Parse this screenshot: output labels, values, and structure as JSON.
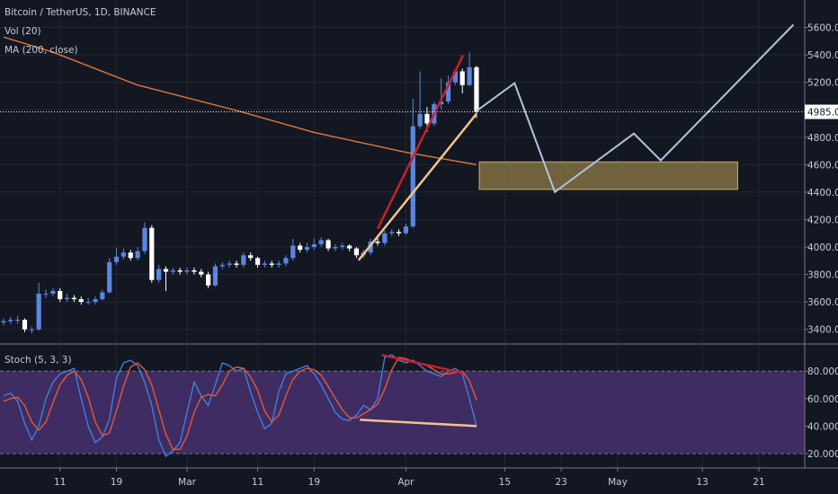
{
  "chart_data": [
    {
      "type": "candlestick",
      "title": "Bitcoin / TetherUS, 1D, BINANCE",
      "volume_label": "Vol (20)",
      "up_color": "#5a86e0",
      "down_color": "#ffffff",
      "grid": true,
      "x": [
        2,
        3,
        4,
        5,
        6,
        7,
        8,
        9,
        10,
        11,
        12,
        13,
        14,
        15,
        16,
        17,
        18,
        19,
        20,
        21,
        22,
        23,
        24,
        25,
        26,
        27,
        28,
        29,
        30,
        31,
        32,
        33,
        34,
        35,
        36,
        37,
        38,
        39,
        40,
        41,
        42,
        43,
        44,
        45,
        46,
        47,
        48,
        49,
        50,
        51,
        52,
        53,
        54,
        55,
        56,
        57,
        58,
        59,
        60,
        61,
        62,
        63,
        64,
        65,
        66,
        67,
        68,
        69
      ],
      "open": [
        3450,
        3460,
        3470,
        3470,
        3400,
        3400,
        3660,
        3660,
        3680,
        3620,
        3630,
        3620,
        3600,
        3600,
        3620,
        3670,
        3890,
        3930,
        3960,
        3920,
        3970,
        4140,
        3760,
        3840,
        3820,
        3830,
        3820,
        3830,
        3820,
        3800,
        3720,
        3860,
        3870,
        3880,
        3870,
        3940,
        3920,
        3870,
        3880,
        3870,
        3880,
        3920,
        4010,
        3980,
        4000,
        4020,
        4050,
        3990,
        4000,
        4010,
        3990,
        3940,
        3960,
        4040,
        4030,
        4100,
        4110,
        4100,
        4150,
        4880,
        4970,
        4900,
        5040,
        5060,
        5200,
        5280,
        5180,
        5310
      ],
      "high": [
        3480,
        3490,
        3500,
        3480,
        3420,
        3740,
        3690,
        3700,
        3700,
        3660,
        3650,
        3640,
        3630,
        3640,
        3690,
        3920,
        3990,
        3990,
        3980,
        4000,
        4180,
        4160,
        3870,
        3860,
        3850,
        3850,
        3850,
        3850,
        3840,
        3820,
        3880,
        3890,
        3900,
        3900,
        3960,
        3960,
        3930,
        3900,
        3900,
        3900,
        3940,
        4060,
        4030,
        4030,
        4060,
        4070,
        4060,
        4020,
        4030,
        4020,
        4000,
        3980,
        4060,
        4080,
        4120,
        4130,
        4130,
        4170,
        5080,
        5280,
        5020,
        5060,
        5230,
        5250,
        5300,
        5300,
        5420,
        5320
      ],
      "low": [
        3430,
        3440,
        3440,
        3380,
        3370,
        3390,
        3630,
        3640,
        3600,
        3600,
        3600,
        3580,
        3580,
        3580,
        3610,
        3660,
        3870,
        3910,
        3900,
        3900,
        3950,
        3740,
        3740,
        3680,
        3800,
        3800,
        3800,
        3800,
        3780,
        3700,
        3710,
        3840,
        3850,
        3850,
        3850,
        3900,
        3850,
        3850,
        3850,
        3850,
        3860,
        3900,
        3960,
        3960,
        3980,
        4000,
        3970,
        3970,
        3980,
        3970,
        3920,
        3920,
        3940,
        4010,
        4010,
        4080,
        4080,
        4090,
        4140,
        4860,
        4840,
        4880,
        5000,
        5040,
        5180,
        5120,
        5170,
        4940
      ],
      "close": [
        3460,
        3470,
        3470,
        3400,
        3400,
        3660,
        3660,
        3680,
        3620,
        3630,
        3620,
        3600,
        3600,
        3620,
        3670,
        3890,
        3930,
        3960,
        3920,
        3970,
        4140,
        3760,
        3840,
        3820,
        3830,
        3820,
        3830,
        3820,
        3800,
        3720,
        3860,
        3870,
        3880,
        3870,
        3940,
        3920,
        3870,
        3880,
        3870,
        3880,
        3920,
        4010,
        3980,
        4000,
        4020,
        4050,
        3990,
        4000,
        4010,
        3990,
        3940,
        3960,
        4040,
        4030,
        4100,
        4110,
        4100,
        4150,
        4880,
        4970,
        4900,
        5040,
        5060,
        5200,
        5280,
        5180,
        5310,
        4985.07
      ],
      "series": [
        {
          "name": "MA (200, close)",
          "color": "#e0793a",
          "x": [
            2,
            9,
            21,
            35,
            46,
            59,
            69
          ],
          "values": [
            5530,
            5420,
            5180,
            4995,
            4835,
            4690,
            4600
          ]
        }
      ],
      "projection": {
        "color": "#b2c3dd",
        "x": [
          69,
          74.4,
          80.1,
          91.3,
          95.1,
          113.9
        ],
        "values": [
          4991,
          5194,
          4401,
          4827,
          4631,
          5620
        ]
      },
      "trendlines": [
        {
          "color": "#c8202a",
          "x": [
            55,
            67.1
          ],
          "values": [
            4133,
            5397
          ]
        },
        {
          "color": "#f0c48a",
          "x": [
            52.3,
            69
          ],
          "values": [
            3904,
            4971
          ]
        }
      ],
      "zone": {
        "color": "#8f7c45",
        "x": [
          69.4,
          106
        ],
        "values": [
          4420,
          4620
        ]
      },
      "last_price": 4985.07,
      "xlim": [
        1.5,
        115.5
      ],
      "xticks": [
        {
          "value": 10,
          "label": "11"
        },
        {
          "value": 18,
          "label": "19"
        },
        {
          "value": 28,
          "label": "Mar"
        },
        {
          "value": 38,
          "label": "11"
        },
        {
          "value": 46,
          "label": "19"
        },
        {
          "value": 59,
          "label": "Apr"
        },
        {
          "value": 73,
          "label": "15"
        },
        {
          "value": 81,
          "label": "23"
        },
        {
          "value": 89,
          "label": "May"
        },
        {
          "value": 101,
          "label": "13"
        },
        {
          "value": 109,
          "label": "21"
        }
      ],
      "ylim": [
        3300,
        5800
      ],
      "yticks": [
        {
          "value": 3400,
          "label": "3400.00"
        },
        {
          "value": 3600,
          "label": "3600.00"
        },
        {
          "value": 3800,
          "label": "3800.00"
        },
        {
          "value": 4000,
          "label": "4000.00"
        },
        {
          "value": 4200,
          "label": "4200.00"
        },
        {
          "value": 4400,
          "label": "4400.00"
        },
        {
          "value": 4600,
          "label": "4600.00"
        },
        {
          "value": 4800,
          "label": "4800.00"
        },
        {
          "value": 5000,
          "label": "5000.00"
        },
        {
          "value": 5200,
          "label": "5200.00"
        },
        {
          "value": 5400,
          "label": "5400.00"
        },
        {
          "value": 5600,
          "label": "5600.00"
        }
      ]
    },
    {
      "type": "line",
      "title": "Stoch (5, 3, 3)",
      "band": [
        20,
        80
      ],
      "band_color": "#3f2c63",
      "x": [
        2,
        3,
        4,
        5,
        6,
        7,
        8,
        9,
        10,
        11,
        12,
        13,
        14,
        15,
        16,
        17,
        18,
        19,
        20,
        21,
        22,
        23,
        24,
        25,
        26,
        27,
        28,
        29,
        30,
        31,
        32,
        33,
        34,
        35,
        36,
        37,
        38,
        39,
        40,
        41,
        42,
        43,
        44,
        45,
        46,
        47,
        48,
        49,
        50,
        51,
        52,
        53,
        54,
        55,
        56,
        57,
        58,
        59,
        60,
        61,
        62,
        63,
        64,
        65,
        66,
        67,
        68,
        69
      ],
      "series": [
        {
          "color": "#3f7fe0",
          "values": [
            62,
            64,
            58,
            42,
            30,
            40,
            60,
            72,
            78,
            80,
            82,
            60,
            40,
            28,
            32,
            45,
            75,
            86,
            88,
            84,
            72,
            55,
            30,
            18,
            22,
            28,
            50,
            72,
            62,
            55,
            70,
            86,
            84,
            80,
            82,
            65,
            50,
            38,
            42,
            65,
            78,
            80,
            82,
            84,
            78,
            70,
            60,
            50,
            45,
            44,
            48,
            55,
            52,
            60,
            90,
            92,
            88,
            86,
            88,
            84,
            80,
            78,
            76,
            80,
            82,
            78,
            60,
            40
          ]
        },
        {
          "color": "#e05a3a",
          "values": [
            58,
            60,
            61,
            55,
            43,
            37,
            43,
            57,
            70,
            77,
            80,
            74,
            61,
            43,
            33,
            35,
            51,
            69,
            83,
            86,
            81,
            70,
            52,
            34,
            23,
            23,
            33,
            50,
            61,
            63,
            62,
            70,
            80,
            83,
            82,
            76,
            66,
            51,
            43,
            48,
            62,
            74,
            80,
            82,
            81,
            77,
            69,
            60,
            52,
            46,
            46,
            49,
            52,
            56,
            67,
            81,
            90,
            89,
            87,
            86,
            84,
            81,
            78,
            78,
            79,
            80,
            73,
            59
          ]
        }
      ],
      "trendlines": [
        {
          "color": "#c8202a",
          "x": [
            55.6,
            67.1
          ],
          "values": [
            91.7,
            78.7
          ]
        },
        {
          "color": "#f0c48a",
          "x": [
            52.5,
            69
          ],
          "values": [
            44.6,
            40
          ]
        }
      ],
      "xlim": [
        1.5,
        115.5
      ],
      "ylim": [
        9.5,
        96.5
      ],
      "yticks": [
        {
          "value": 20,
          "label": "20.0000"
        },
        {
          "value": 40,
          "label": "40.0000"
        },
        {
          "value": 60,
          "label": "60.0000"
        },
        {
          "value": 80,
          "label": "80.0000"
        }
      ]
    }
  ]
}
